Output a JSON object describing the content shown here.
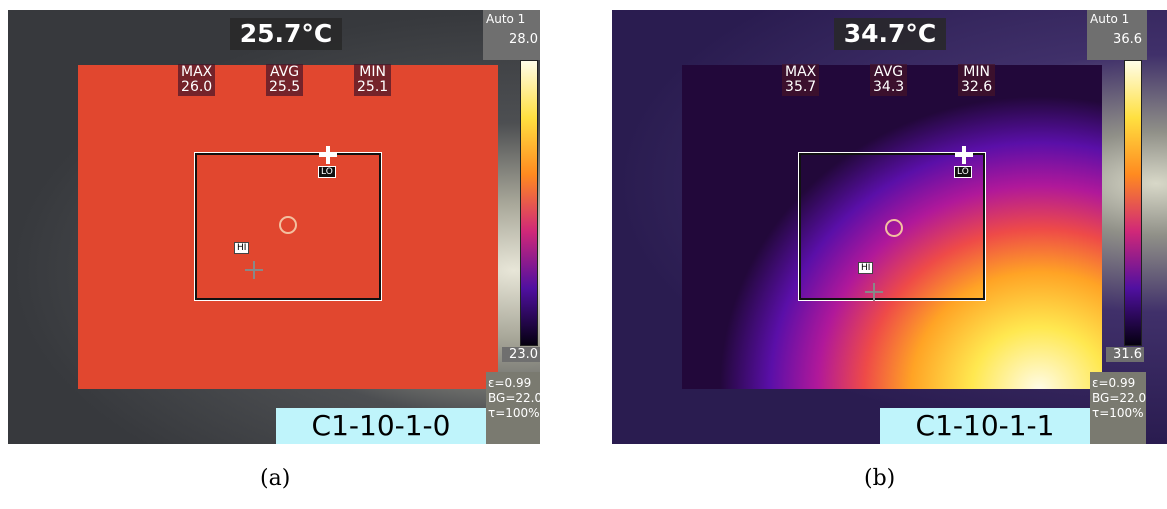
{
  "panels": [
    {
      "temperature": "25.7°C",
      "mode": "Auto 1",
      "scale_max": "28.0",
      "scale_min": "23.0",
      "stats": [
        {
          "label": "MAX",
          "value": "26.0"
        },
        {
          "label": "AVG",
          "value": "25.5"
        },
        {
          "label": "MIN",
          "value": "25.1"
        }
      ],
      "lo": "LO",
      "hi": "HI",
      "emissivity": "ε=0.99",
      "background": "BG=22.0",
      "transmission": "τ=100%",
      "id": "C1-10-1-0",
      "caption": "(a)"
    },
    {
      "temperature": "34.7°C",
      "mode": "Auto 1",
      "scale_max": "36.6",
      "scale_min": "31.6",
      "stats": [
        {
          "label": "MAX",
          "value": "35.7"
        },
        {
          "label": "AVG",
          "value": "34.3"
        },
        {
          "label": "MIN",
          "value": "32.6"
        }
      ],
      "lo": "LO",
      "hi": "HI",
      "emissivity": "ε=0.99",
      "background": "BG=22.0",
      "transmission": "τ=100%",
      "id": "C1-10-1-1",
      "caption": "(b)"
    }
  ]
}
